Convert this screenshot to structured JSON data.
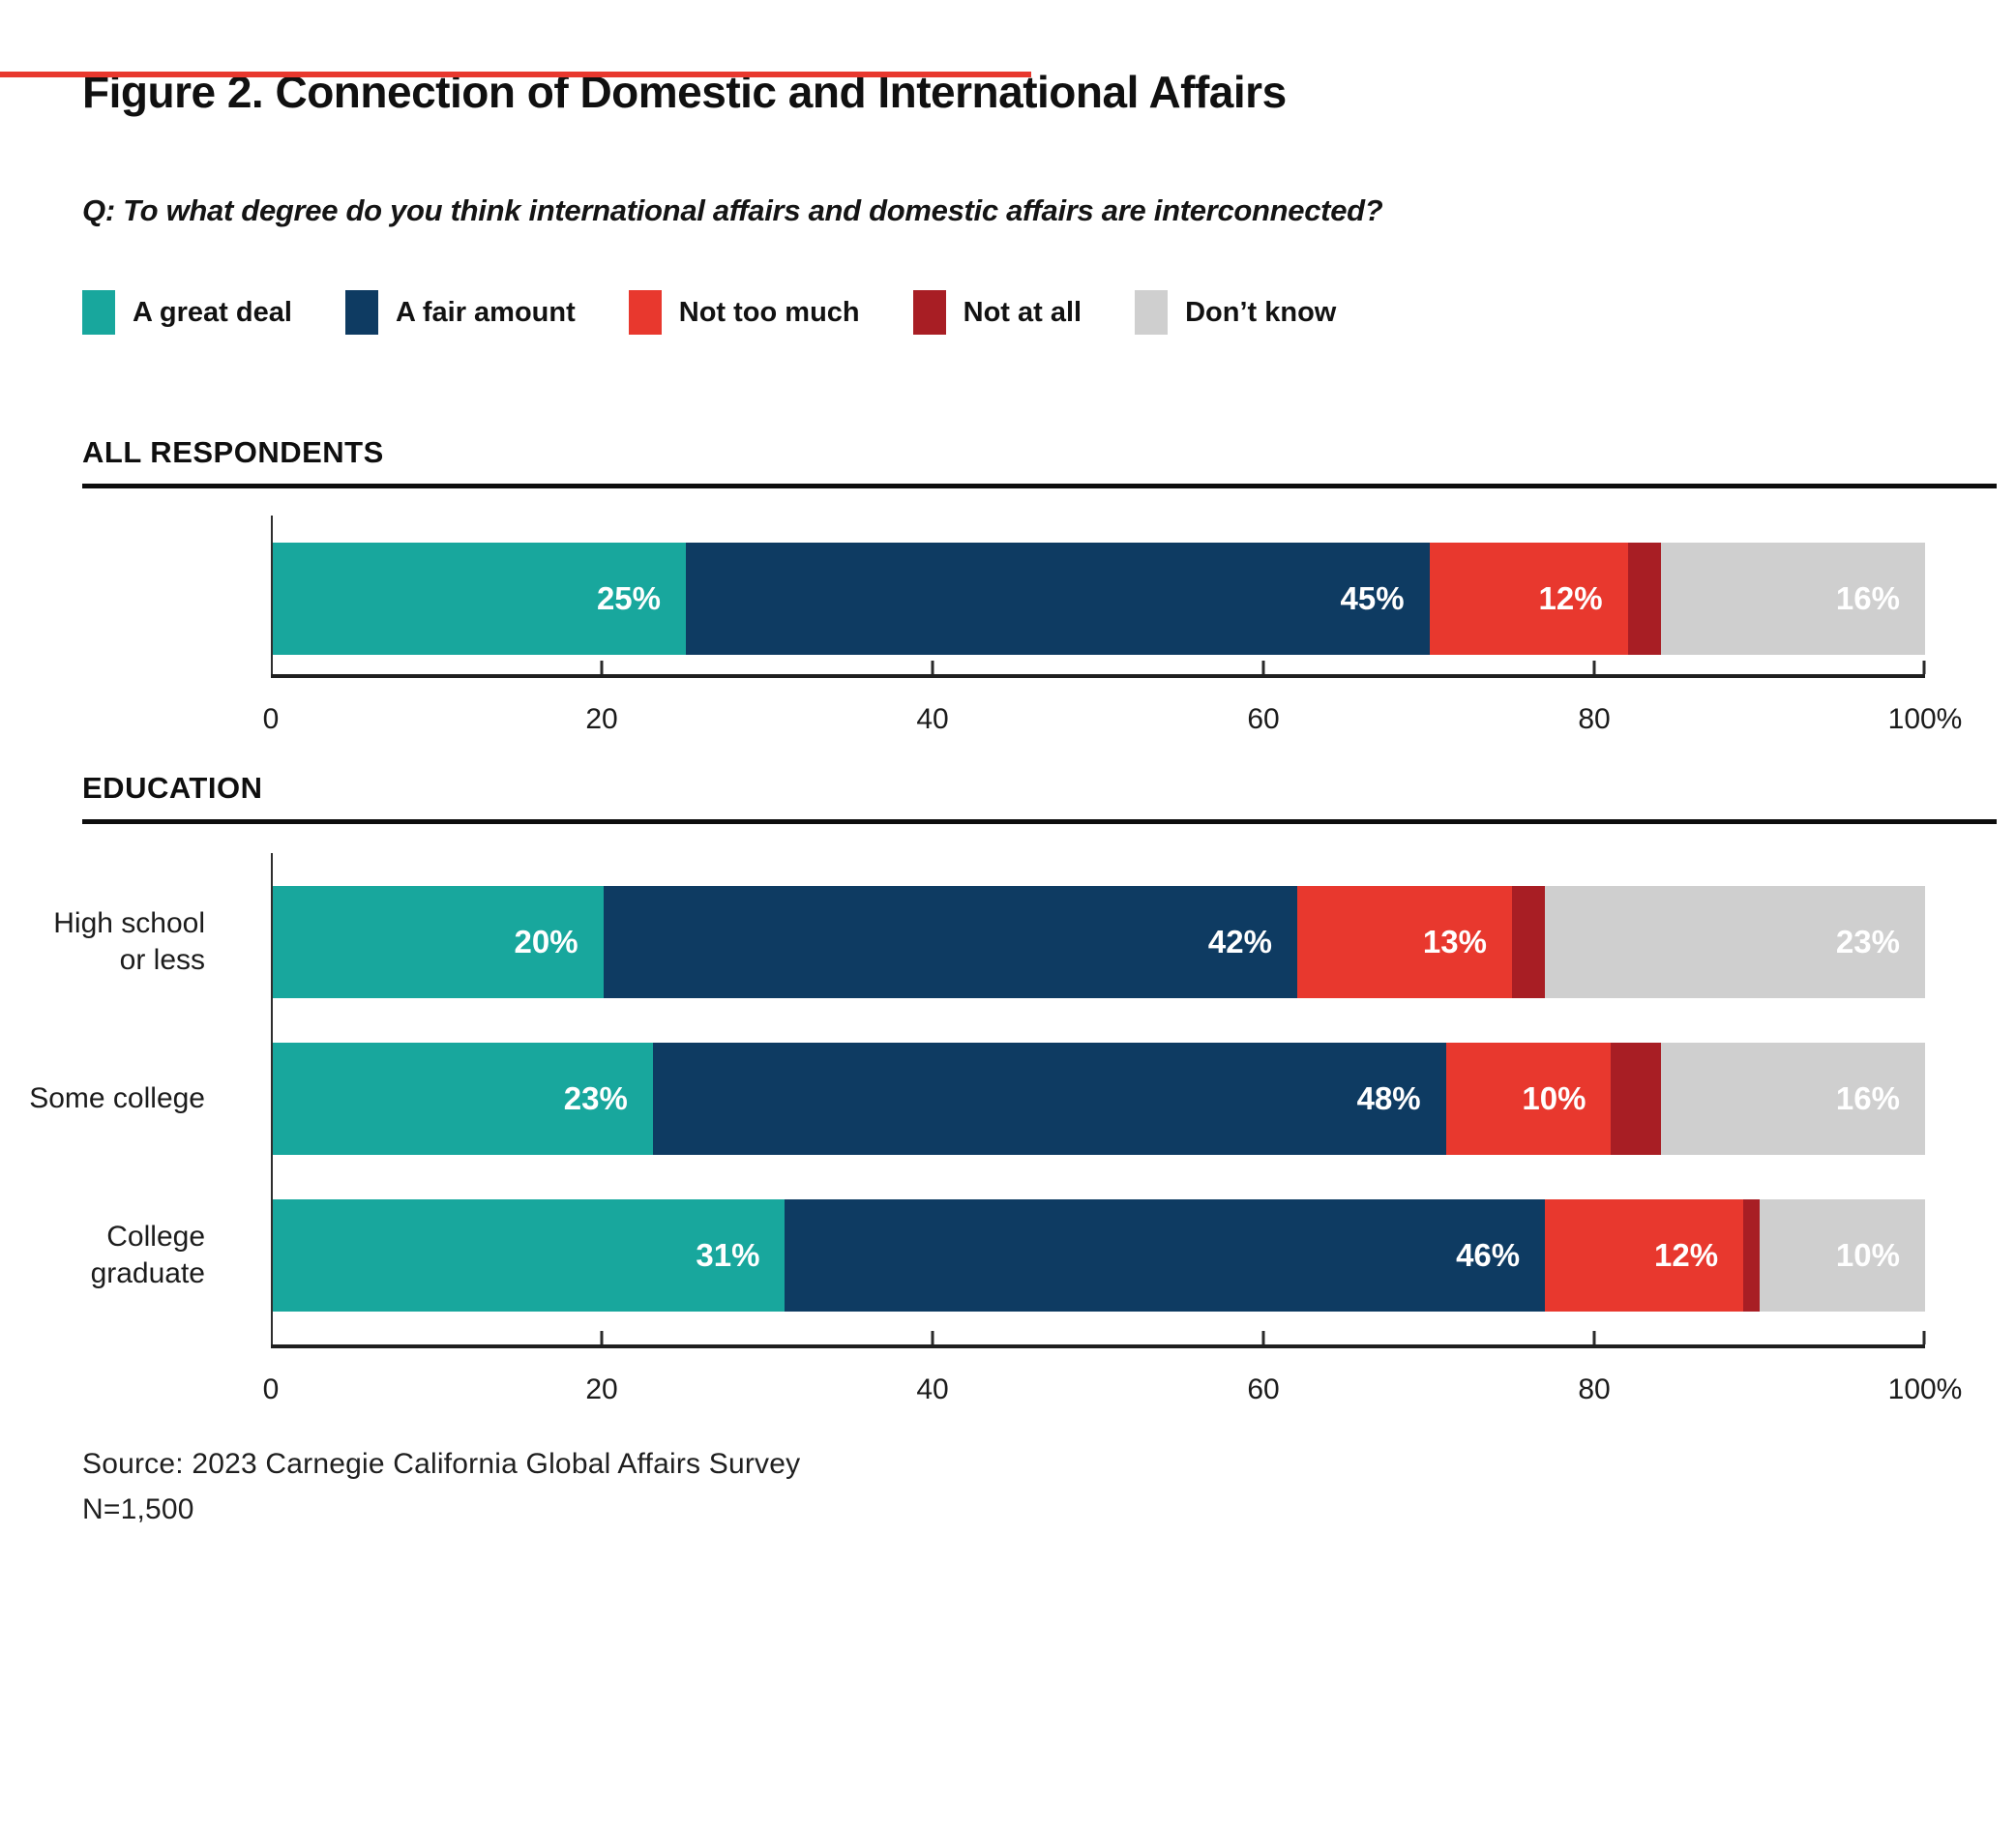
{
  "accent_line": {
    "color": "#e8382e"
  },
  "title": "Figure 2. Connection of Domestic and International Affairs",
  "question": "Q: To what degree do you think international affairs and domestic affairs are interconnected?",
  "legend": [
    {
      "label": "A great deal",
      "color": "#18a79d"
    },
    {
      "label": "A fair amount",
      "color": "#0e3b62"
    },
    {
      "label": "Not too much",
      "color": "#e8382e"
    },
    {
      "label": "Not at all",
      "color": "#a81e24"
    },
    {
      "label": "Don’t know",
      "color": "#cfcfcf"
    }
  ],
  "chart_data": [
    {
      "type": "bar",
      "orientation": "horizontal",
      "stacked": true,
      "section_title": "ALL RESPONDENTS",
      "categories": [
        ""
      ],
      "category_label_lines": [
        []
      ],
      "series": [
        {
          "name": "A great deal",
          "color": "#18a79d",
          "values": [
            25
          ]
        },
        {
          "name": "A fair amount",
          "color": "#0e3b62",
          "values": [
            45
          ]
        },
        {
          "name": "Not too much",
          "color": "#e8382e",
          "values": [
            12
          ]
        },
        {
          "name": "Not at all",
          "color": "#a81e24",
          "values": [
            2
          ]
        },
        {
          "name": "Don’t know",
          "color": "#cfcfcf",
          "values": [
            16
          ]
        }
      ],
      "data_label_format": "{v}%",
      "data_label_min": 5,
      "xlim": [
        0,
        100
      ],
      "tick_positions": [
        0,
        20,
        40,
        60,
        80,
        100
      ],
      "tick_labels": [
        "0",
        "20",
        "40",
        "60",
        "80",
        "100%"
      ],
      "grid": false,
      "legend_position": "top"
    },
    {
      "type": "bar",
      "orientation": "horizontal",
      "stacked": true,
      "section_title": "EDUCATION",
      "categories": [
        "High school or less",
        "Some college",
        "College graduate"
      ],
      "category_label_lines": [
        [
          "High school",
          "or less"
        ],
        [
          "Some college"
        ],
        [
          "College",
          "graduate"
        ]
      ],
      "series": [
        {
          "name": "A great deal",
          "color": "#18a79d",
          "values": [
            20,
            23,
            31
          ]
        },
        {
          "name": "A fair amount",
          "color": "#0e3b62",
          "values": [
            42,
            48,
            46
          ]
        },
        {
          "name": "Not too much",
          "color": "#e8382e",
          "values": [
            13,
            10,
            12
          ]
        },
        {
          "name": "Not at all",
          "color": "#a81e24",
          "values": [
            2,
            3,
            1
          ]
        },
        {
          "name": "Don’t know",
          "color": "#cfcfcf",
          "values": [
            23,
            16,
            10
          ]
        }
      ],
      "data_label_format": "{v}%",
      "data_label_min": 5,
      "xlim": [
        0,
        100
      ],
      "tick_positions": [
        0,
        20,
        40,
        60,
        80,
        100
      ],
      "tick_labels": [
        "0",
        "20",
        "40",
        "60",
        "80",
        "100%"
      ],
      "grid": false,
      "legend_position": "top"
    }
  ],
  "footer": {
    "source": "Source: 2023 Carnegie California Global Affairs Survey",
    "sample_size": "N=1,500"
  }
}
